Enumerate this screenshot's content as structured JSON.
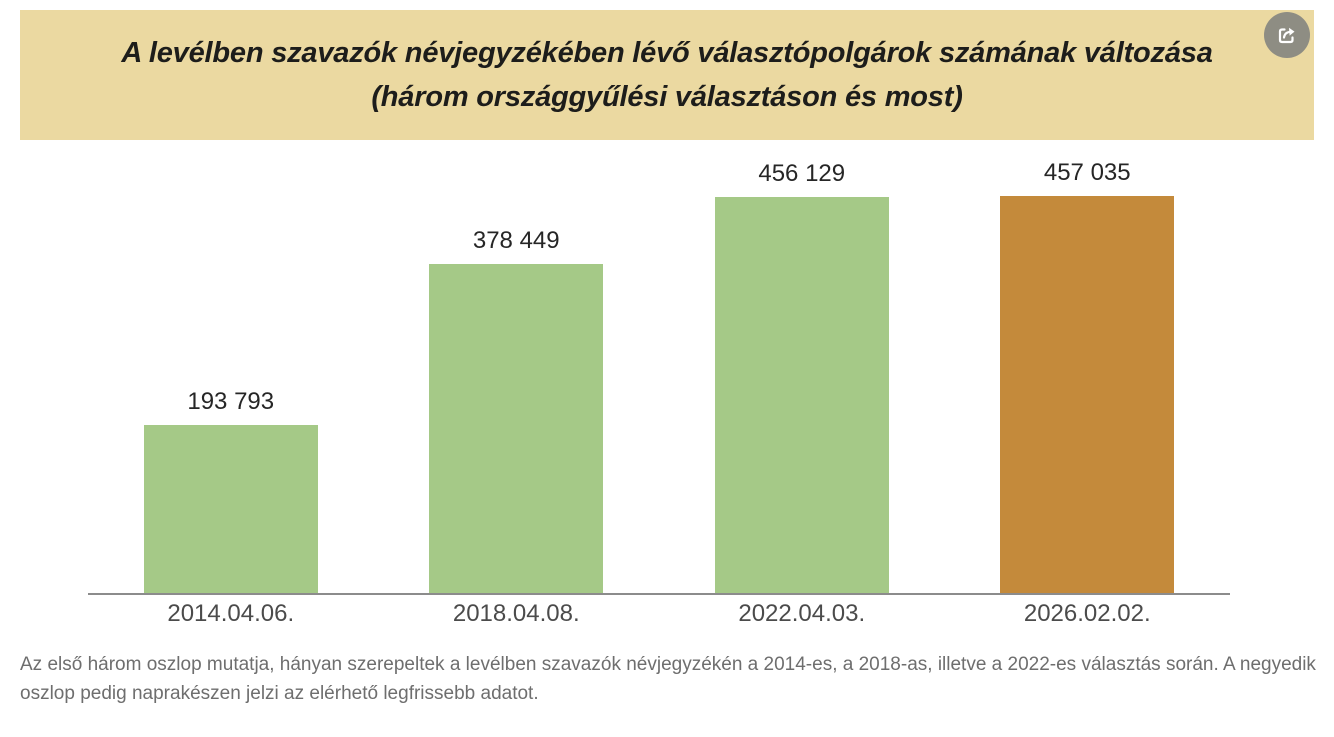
{
  "header": {
    "title": "A levélben szavazók névjegyzékében lévő választópolgárok számának változása (három országgyűlési választáson és most)",
    "background_color": "#ebd9a1",
    "share_button": {
      "icon": "share-icon",
      "circle_color": "#8e8d83"
    }
  },
  "chart_data": {
    "type": "bar",
    "categories": [
      "2014.04.06.",
      "2018.04.08.",
      "2022.04.03.",
      "2026.02.02."
    ],
    "values": [
      193793,
      378449,
      456129,
      457035
    ],
    "value_labels": [
      "193 793",
      "378 449",
      "456 129",
      "457 035"
    ],
    "bar_colors": [
      "#a5c987",
      "#a5c987",
      "#a5c987",
      "#c48a3b"
    ],
    "title": "",
    "xlabel": "",
    "ylabel": "",
    "ylim": [
      0,
      457035
    ],
    "grid": false,
    "legend": false,
    "data_labels": "above bars",
    "axis_line_color": "#8c8c8c"
  },
  "caption": "Az első három oszlop mutatja, hányan szerepeltek a levélben szavazók névjegyzékén a 2014-es, a 2018-as, illetve a 2022-es választás során. A negyedik oszlop pedig naprakészen jelzi az elérhető legfrissebb adatot.",
  "colors": {
    "green_bar": "#a5c987",
    "orange_bar": "#c48a3b",
    "banner_background": "#ebd9a1",
    "value_label_text": "#262626",
    "tick_label_text": "#4b4b4b",
    "caption_text": "#6e6e6e"
  }
}
